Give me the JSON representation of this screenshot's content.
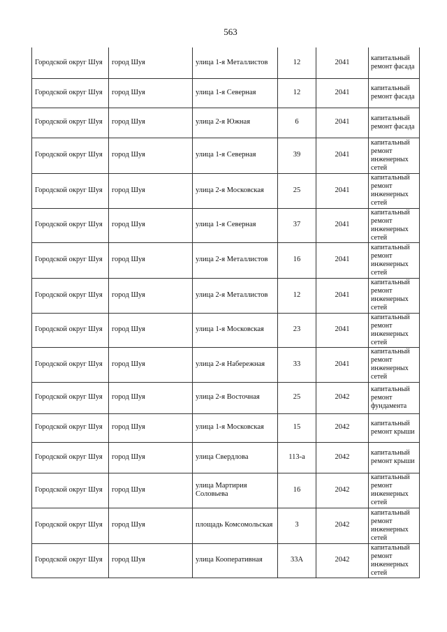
{
  "page_number": "563",
  "rows": [
    {
      "district": "Городской округ Шуя",
      "city": "город Шуя",
      "street": "улица 1-я Металлистов",
      "house": "12",
      "year": "2041",
      "work": "капитальный ремонт фасада"
    },
    {
      "district": "Городской округ Шуя",
      "city": "город Шуя",
      "street": "улица 1-я  Северная",
      "house": "12",
      "year": "2041",
      "work": "капитальный ремонт фасада"
    },
    {
      "district": "Городской округ Шуя",
      "city": "город Шуя",
      "street": "улица 2-я  Южная",
      "house": "6",
      "year": "2041",
      "work": "капитальный ремонт фасада"
    },
    {
      "district": "Городской округ Шуя",
      "city": "город Шуя",
      "street": "улица 1-я  Северная",
      "house": "39",
      "year": "2041",
      "work": "капитальный ремонт инженерных сетей"
    },
    {
      "district": "Городской округ Шуя",
      "city": "город Шуя",
      "street": "улица 2-я Московская",
      "house": "25",
      "year": "2041",
      "work": "капитальный ремонт инженерных сетей"
    },
    {
      "district": "Городской округ Шуя",
      "city": "город Шуя",
      "street": "улица 1-я  Северная",
      "house": "37",
      "year": "2041",
      "work": "капитальный ремонт инженерных сетей"
    },
    {
      "district": "Городской округ Шуя",
      "city": "город Шуя",
      "street": "улица 2-я Металлистов",
      "house": "16",
      "year": "2041",
      "work": "капитальный ремонт инженерных сетей"
    },
    {
      "district": "Городской округ Шуя",
      "city": "город Шуя",
      "street": "улица 2-я Металлистов",
      "house": "12",
      "year": "2041",
      "work": "капитальный ремонт инженерных сетей"
    },
    {
      "district": "Городской округ Шуя",
      "city": "город Шуя",
      "street": "улица 1-я  Московская",
      "house": "23",
      "year": "2041",
      "work": "капитальный ремонт инженерных сетей"
    },
    {
      "district": "Городской округ Шуя",
      "city": "город Шуя",
      "street": "улица 2-я Набережная",
      "house": "33",
      "year": "2041",
      "work": "капитальный ремонт инженерных сетей"
    },
    {
      "district": "Городской округ Шуя",
      "city": "город Шуя",
      "street": "улица 2-я Восточная",
      "house": "25",
      "year": "2042",
      "work": "капитальный ремонт фундамента"
    },
    {
      "district": "Городской округ Шуя",
      "city": "город Шуя",
      "street": "улица 1-я Московская",
      "house": "15",
      "year": "2042",
      "work": "капитальный ремонт крыши"
    },
    {
      "district": "Городской округ Шуя",
      "city": "город Шуя",
      "street": "улица Свердлова",
      "house": "113-а",
      "year": "2042",
      "work": "капитальный ремонт крыши"
    },
    {
      "district": "Городской округ Шуя",
      "city": "город Шуя",
      "street": "улица Мартирия Соловьева",
      "house": "16",
      "year": "2042",
      "work": "капитальный ремонт инженерных сетей"
    },
    {
      "district": "Городской округ Шуя",
      "city": "город Шуя",
      "street": "площадь Комсомольская",
      "house": "3",
      "year": "2042",
      "work": "капитальный ремонт инженерных сетей"
    },
    {
      "district": "Городской округ Шуя",
      "city": "город Шуя",
      "street": "улица Кооперативная",
      "house": "33А",
      "year": "2042",
      "work": "капитальный ремонт инженерных сетей"
    }
  ]
}
